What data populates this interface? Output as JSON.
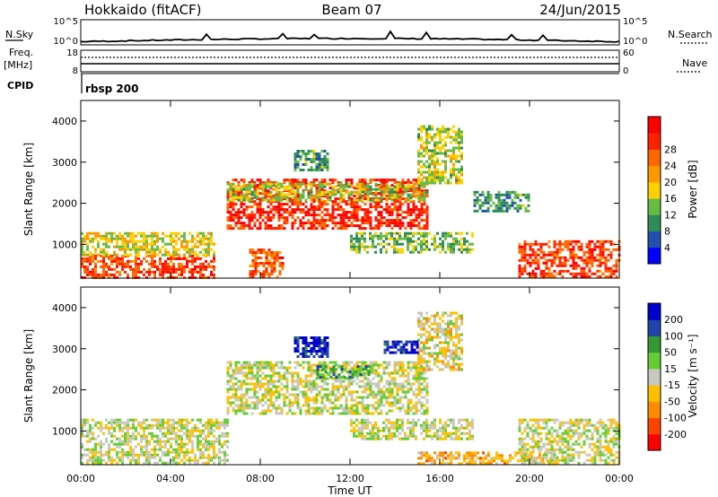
{
  "header": {
    "station": "Hokkaido (fitACF)",
    "beam": "Beam 07",
    "date": "24/Jun/2015"
  },
  "strips": {
    "nsky_label": "N.Sky",
    "nsky_ticks": [
      "10^5",
      "10^0"
    ],
    "nsearch_label": "N.Search",
    "nsearch_ticks": [
      "10^5",
      "10^0"
    ],
    "freq_label_1": "Freq.",
    "freq_label_2": "[MHz]",
    "freq_ticks": [
      "18",
      "8"
    ],
    "nave_label": "Nave",
    "nave_ticks": [
      "60",
      "0"
    ],
    "cpid_label": "CPID",
    "cpid_value": "rbsp 200"
  },
  "colors": {
    "power": [
      "#0000ff",
      "#2250b0",
      "#2e8b57",
      "#66bb44",
      "#ffd000",
      "#ff9900",
      "#ff6600",
      "#ff2200",
      "#ff0000"
    ],
    "velocity": [
      "#ff0000",
      "#ff4400",
      "#ff8c00",
      "#ffc000",
      "#c8c8c0",
      "#66cc33",
      "#339933",
      "#2244aa",
      "#0000cc"
    ],
    "ground_scatter": "#c8c8c0"
  },
  "chart_data": [
    {
      "type": "heatmap",
      "panel": "power",
      "ylabel": "Slant Range [km]",
      "xlabel": "Time UT",
      "x_ticks": [
        "00:00",
        "04:00",
        "08:00",
        "12:00",
        "16:00",
        "20:00",
        "00:00"
      ],
      "xlim_hours": [
        0,
        24
      ],
      "y_ticks": [
        1000,
        2000,
        3000,
        4000
      ],
      "ylim": [
        180,
        4500
      ],
      "colorbar_label": "Power [dB]",
      "colorbar_ticks": [
        "4",
        "8",
        "12",
        "16",
        "20",
        "24",
        "28"
      ],
      "regions": [
        {
          "t0": 0.0,
          "t1": 6.0,
          "r0": 200,
          "r1": 750,
          "level": 0.8
        },
        {
          "t0": 0.0,
          "t1": 6.0,
          "r0": 750,
          "r1": 1300,
          "level": 0.5
        },
        {
          "t0": 6.5,
          "t1": 15.5,
          "r0": 1400,
          "r1": 2600,
          "level": 0.85
        },
        {
          "t0": 6.5,
          "t1": 15.5,
          "r0": 2100,
          "r1": 2500,
          "level": 0.45
        },
        {
          "t0": 15.0,
          "t1": 17.0,
          "r0": 2500,
          "r1": 3900,
          "level": 0.45
        },
        {
          "t0": 17.5,
          "t1": 20.0,
          "r0": 1800,
          "r1": 2300,
          "level": 0.3
        },
        {
          "t0": 12.0,
          "t1": 17.5,
          "r0": 800,
          "r1": 1300,
          "level": 0.4
        },
        {
          "t0": 19.5,
          "t1": 24.0,
          "r0": 200,
          "r1": 1100,
          "level": 0.8
        },
        {
          "t0": 7.5,
          "t1": 9.0,
          "r0": 200,
          "r1": 900,
          "level": 0.75
        },
        {
          "t0": 9.5,
          "t1": 11.0,
          "r0": 2800,
          "r1": 3300,
          "level": 0.3
        }
      ]
    },
    {
      "type": "heatmap",
      "panel": "velocity",
      "ylabel": "Slant Range [km]",
      "xlabel": "Time UT",
      "x_ticks": [
        "00:00",
        "04:00",
        "08:00",
        "12:00",
        "16:00",
        "20:00",
        "00:00"
      ],
      "xlim_hours": [
        0,
        24
      ],
      "y_ticks": [
        1000,
        2000,
        3000,
        4000
      ],
      "ylim": [
        180,
        4500
      ],
      "colorbar_label": "Velocity [m s⁻¹]",
      "colorbar_ticks": [
        "200",
        "100",
        "50",
        "15",
        "-15",
        "-50",
        "-100",
        "-200"
      ],
      "regions": [
        {
          "t0": 0.0,
          "t1": 6.5,
          "r0": 200,
          "r1": 1300,
          "level": 0.5
        },
        {
          "t0": 6.5,
          "t1": 15.5,
          "r0": 1400,
          "r1": 2700,
          "level": 0.5
        },
        {
          "t0": 10.5,
          "t1": 13.0,
          "r0": 2300,
          "r1": 2600,
          "level": 0.68
        },
        {
          "t0": 15.0,
          "t1": 17.0,
          "r0": 2500,
          "r1": 3900,
          "level": 0.45
        },
        {
          "t0": 9.5,
          "t1": 11.0,
          "r0": 2800,
          "r1": 3300,
          "level": 0.9
        },
        {
          "t0": 13.5,
          "t1": 15.0,
          "r0": 2900,
          "r1": 3200,
          "level": 0.9
        },
        {
          "t0": 15.0,
          "t1": 21.0,
          "r0": 200,
          "r1": 500,
          "level": 0.36
        },
        {
          "t0": 19.5,
          "t1": 24.0,
          "r0": 200,
          "r1": 1300,
          "level": 0.5
        },
        {
          "t0": 12.0,
          "t1": 17.5,
          "r0": 800,
          "r1": 1300,
          "level": 0.5
        }
      ]
    }
  ]
}
